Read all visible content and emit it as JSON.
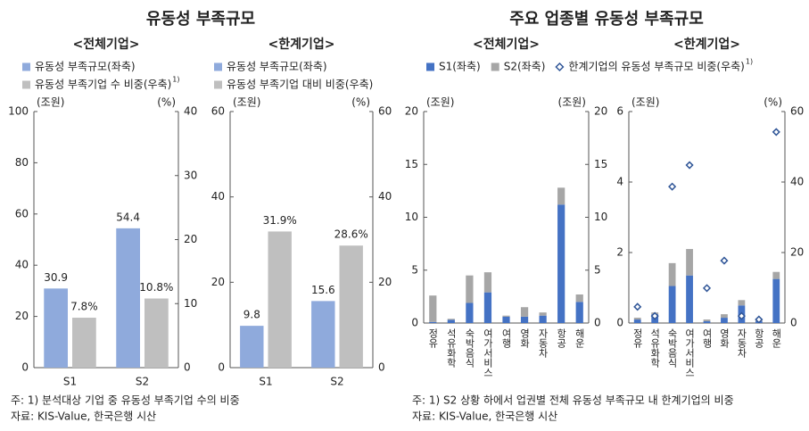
{
  "groups": [
    {
      "title": "유동성 부족규모",
      "note": "주: 1) 분석대상 기업 중 유동성 부족기업 수의 비중",
      "source": "자료: KIS-Value, 한국은행 시산"
    },
    {
      "title": "주요 업종별 유동성 부족규모",
      "note": "주: 1) S2 상황 하에서 업권별 전체 유동성 부족규모 내 한계기업의 비중",
      "source": "자료: KIS-Value, 한국은행 시산"
    }
  ],
  "chart_data": [
    {
      "type": "bar",
      "title": "<전체기업>",
      "ylabel": "(조원)",
      "y2label": "(%)",
      "categories": [
        "S1",
        "S2"
      ],
      "series": [
        {
          "name": "유동성 부족규모(좌축)",
          "color": "#8faadc",
          "values": [
            30.9,
            54.4
          ]
        },
        {
          "name": "유동성 부족기업 수 비중(우축)",
          "name_note": "1)",
          "color": "#bfbfbf",
          "axis": "y2",
          "values": [
            7.8,
            10.8
          ],
          "value_labels": [
            "7.8%",
            "10.8%"
          ]
        }
      ],
      "ylim": [
        0,
        100
      ],
      "yticks": [
        0,
        20,
        40,
        60,
        80,
        100
      ],
      "y2lim": [
        0,
        40
      ],
      "y2ticks": [
        0,
        10,
        20,
        30,
        40
      ],
      "show_values": true
    },
    {
      "type": "bar",
      "title": "<한계기업>",
      "ylabel": "(조원)",
      "y2label": "(%)",
      "categories": [
        "S1",
        "S2"
      ],
      "series": [
        {
          "name": "유동성 부족규모(좌축)",
          "color": "#8faadc",
          "values": [
            9.8,
            15.6
          ]
        },
        {
          "name": "유동성 부족기업 대비 비중(우축)",
          "color": "#bfbfbf",
          "axis": "y2",
          "values": [
            31.9,
            28.6
          ],
          "value_labels": [
            "31.9%",
            "28.6%"
          ]
        }
      ],
      "ylim": [
        0,
        60
      ],
      "yticks": [
        0,
        20,
        40,
        60
      ],
      "y2lim": [
        0,
        60
      ],
      "y2ticks": [
        0,
        20,
        40,
        60
      ],
      "show_values": true
    },
    {
      "type": "bar",
      "stacked": true,
      "legend": false,
      "title": "<전체기업>",
      "ylabel": "(조원)",
      "y2label": "(조원)",
      "categories": [
        "정유",
        "석유화학",
        "숙박음식",
        "여가서비스",
        "여행",
        "영화",
        "자동차",
        "항공",
        "해운"
      ],
      "series": [
        {
          "name": "S1(좌축)",
          "color": "#4472c4",
          "values": [
            0.1,
            0.3,
            1.9,
            2.9,
            0.6,
            0.6,
            0.7,
            11.2,
            2.0
          ]
        },
        {
          "name": "S2(좌축)",
          "color": "#a6a6a6",
          "values": [
            2.5,
            0.1,
            2.6,
            1.9,
            0.1,
            0.9,
            0.3,
            1.6,
            0.7
          ]
        }
      ],
      "ylim": [
        0,
        20
      ],
      "yticks": [
        0,
        5,
        10,
        15,
        20
      ],
      "y2lim": [
        0,
        20
      ],
      "y2ticks": [
        0,
        5,
        10,
        15,
        20
      ]
    },
    {
      "type": "bar",
      "stacked": true,
      "title": "<한계기업>",
      "ylabel": "(조원)",
      "y2label": "(%)",
      "categories": [
        "정유",
        "석유화학",
        "숙박음식",
        "여가서비스",
        "여행",
        "영화",
        "자동차",
        "항공",
        "해운"
      ],
      "series": [
        {
          "name": "S1(좌축)",
          "color": "#4472c4",
          "values": [
            0.1,
            0.25,
            1.05,
            1.35,
            0.05,
            0.15,
            0.5,
            0.05,
            1.25
          ]
        },
        {
          "name": "S2(좌축)",
          "color": "#a6a6a6",
          "values": [
            0.05,
            0.05,
            0.65,
            0.75,
            0.05,
            0.1,
            0.15,
            0.05,
            0.2
          ]
        },
        {
          "name": "한계기업의 유동성 부족규모 비중(우축)",
          "name_note": "1)",
          "type": "scatter",
          "marker": "diamond",
          "color": "#2f5597",
          "axis": "y2",
          "values": [
            4.6,
            2.0,
            38.7,
            44.8,
            9.9,
            17.7,
            2.0,
            1.0,
            54.2
          ]
        }
      ],
      "ylim": [
        0,
        6
      ],
      "yticks": [
        0,
        2,
        4,
        6
      ],
      "y2lim": [
        0,
        60
      ],
      "y2ticks": [
        0,
        20,
        40,
        60
      ]
    }
  ]
}
